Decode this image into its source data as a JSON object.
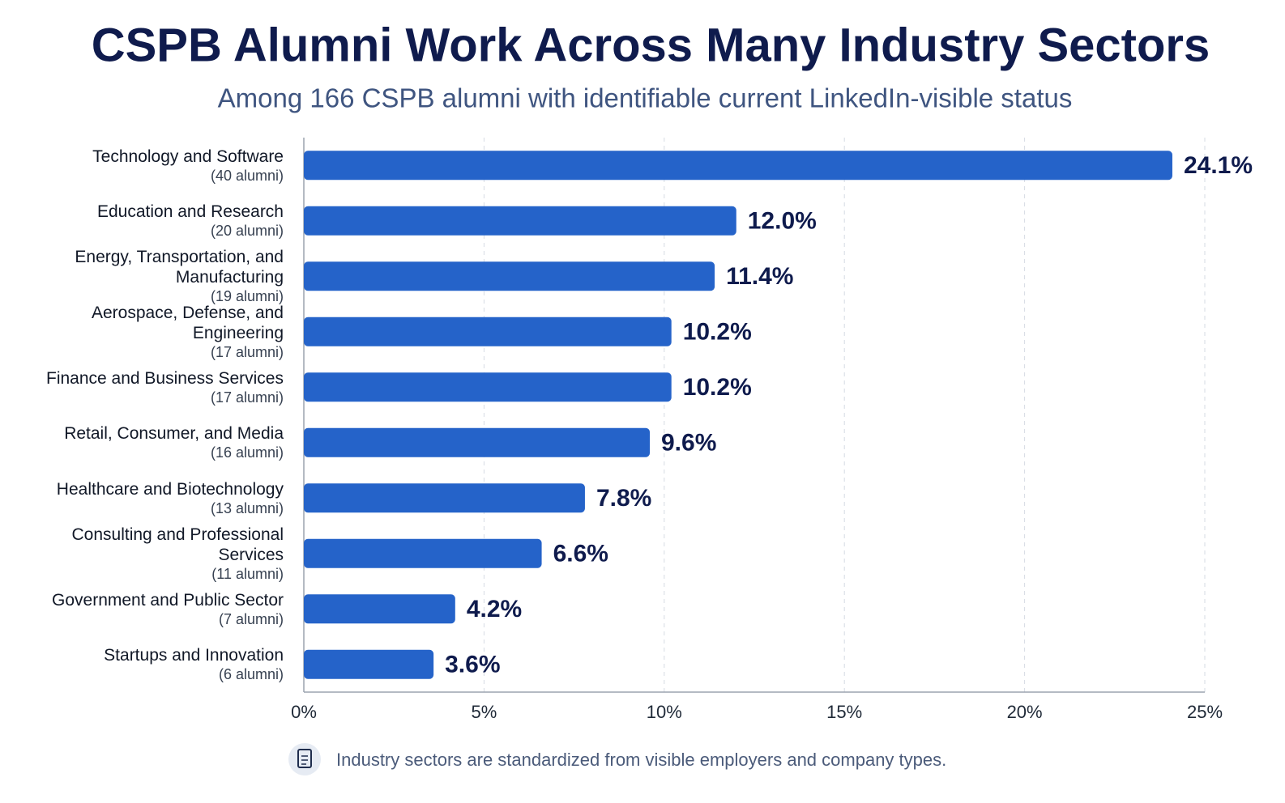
{
  "chart_data": {
    "type": "bar",
    "orientation": "horizontal",
    "title": "CSPB Alumni Work Across Many Industry Sectors",
    "subtitle": "Among 166 CSPB alumni with identifiable current LinkedIn-visible status",
    "categories": [
      "Technology and Software",
      "Education and Research",
      "Energy, Transportation, and Manufacturing",
      "Aerospace, Defense, and Engineering",
      "Finance and Business Services",
      "Retail, Consumer, and Media",
      "Healthcare and Biotechnology",
      "Consulting and Professional Services",
      "Government and Public Sector",
      "Startups and Innovation"
    ],
    "category_notes": [
      "(40 alumni)",
      "(20 alumni)",
      "(19 alumni)",
      "(17 alumni)",
      "(17 alumni)",
      "(16 alumni)",
      "(13 alumni)",
      "(11 alumni)",
      "(7 alumni)",
      "(6 alumni)"
    ],
    "values": [
      24.1,
      12.0,
      11.4,
      10.2,
      10.2,
      9.6,
      7.8,
      6.6,
      4.2,
      3.6
    ],
    "value_labels": [
      "24.1%",
      "12.0%",
      "11.4%",
      "10.2%",
      "10.2%",
      "9.6%",
      "7.8%",
      "6.6%",
      "4.2%",
      "3.6%"
    ],
    "color": "#2563c9",
    "xlim": [
      0,
      25
    ],
    "xticks": [
      {
        "value": 0,
        "label": "0%"
      },
      {
        "value": 5,
        "label": "5%"
      },
      {
        "value": 10,
        "label": "10%"
      },
      {
        "value": 15,
        "label": "15%"
      },
      {
        "value": 20,
        "label": "20%"
      },
      {
        "value": 25,
        "label": "25%"
      }
    ],
    "grid": true,
    "footnote": "Industry sectors are standardized from visible employers and company types."
  }
}
